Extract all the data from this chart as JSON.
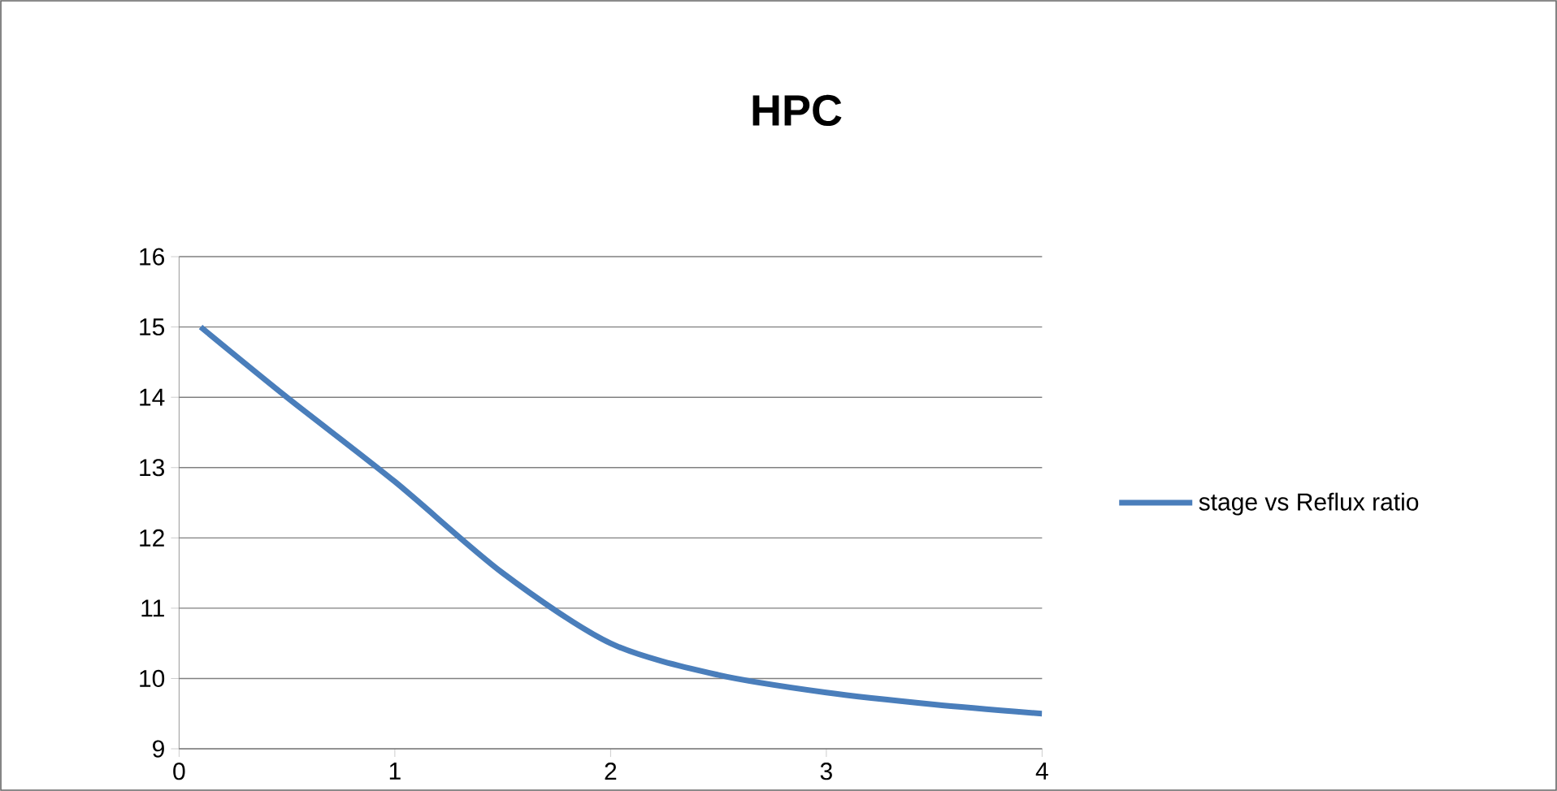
{
  "chart_data": {
    "type": "line",
    "title": "HPC",
    "xlim": [
      0,
      4
    ],
    "xticks": [
      0,
      1,
      2,
      3,
      4
    ],
    "ylim": [
      9,
      16
    ],
    "yticks": [
      9,
      10,
      11,
      12,
      13,
      14,
      15,
      16
    ],
    "grid": "y",
    "legend": "right",
    "line_style": "solid",
    "series": [
      {
        "name": "stage  vs Reflux ratio",
        "color": "#4a7ebb",
        "x": [
          0.1,
          0.5,
          1,
          1.5,
          2,
          2.5,
          3,
          3.5,
          4
        ],
        "values": [
          15,
          14.0,
          12.8,
          11.5,
          10.5,
          10.05,
          9.8,
          9.63,
          9.5
        ]
      }
    ]
  }
}
